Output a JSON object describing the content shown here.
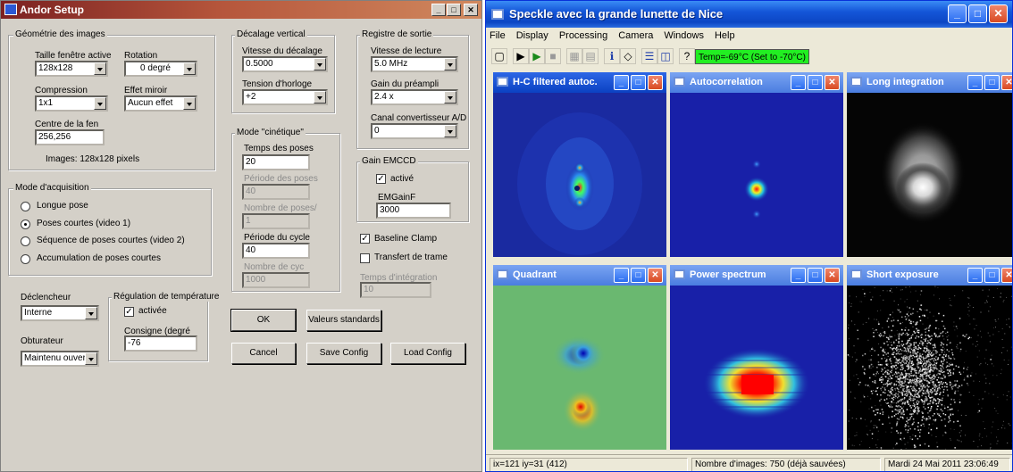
{
  "andor": {
    "title": "Andor Setup",
    "geometry": {
      "legend": "Géométrie des images",
      "taille_label": "Taille fenêtre active",
      "taille_value": "128x128",
      "rotation_label": "Rotation",
      "rotation_value": "0 degré",
      "compression_label": "Compression",
      "compression_value": "1x1",
      "miroir_label": "Effet miroir",
      "miroir_value": "Aucun effet",
      "centre_label": "Centre de la fen",
      "centre_value": "256,256",
      "images_text": "Images: 128x128 pixels"
    },
    "acq": {
      "legend": "Mode d'acquisition",
      "options": [
        "Longue pose",
        "Poses courtes (video 1)",
        "Séquence de poses courtes (video 2)",
        "Accumulation de poses courtes"
      ],
      "selected_index": 1
    },
    "declencheur_label": "Déclencheur",
    "declencheur_value": "Interne",
    "obturateur_label": "Obturateur",
    "obturateur_value": "Maintenu ouvert",
    "temp": {
      "legend": "Régulation de température",
      "activee_label": "activée",
      "consigne_label": "Consigne (degré",
      "consigne_value": "-76"
    },
    "vshift": {
      "legend": "Décalage vertical",
      "vitesse_label": "Vitesse du décalage",
      "vitesse_value": "0.5000",
      "tension_label": "Tension d'horloge",
      "tension_value": "+2"
    },
    "kinetic": {
      "legend": "Mode \"cinétique\"",
      "temps_label": "Temps des poses",
      "temps_value": "20",
      "periode_poses_label": "Période des poses",
      "periode_poses_value": "40",
      "nombre_poses_label": "Nombre de poses/",
      "nombre_poses_value": "1",
      "periode_cycle_label": "Période du cycle",
      "periode_cycle_value": "40",
      "nombre_cyc_label": "Nombre de cyc",
      "nombre_cyc_value": "1000"
    },
    "output": {
      "legend": "Registre de sortie",
      "lecture_label": "Vitesse de lecture",
      "lecture_value": "5.0 MHz",
      "gain_label": "Gain du préampli",
      "gain_value": "2.4 x",
      "canal_label": "Canal convertisseur A/D",
      "canal_value": "0"
    },
    "emccd": {
      "legend": "Gain EMCCD",
      "active_label": "activé",
      "emgain_label": "EMGainF",
      "emgain_value": "3000"
    },
    "baseline_label": "Baseline Clamp",
    "transfert_label": "Transfert de trame",
    "integration_label": "Temps d'intégration",
    "integration_value": "10",
    "buttons": {
      "ok": "OK",
      "standards": "Valeurs standards",
      "cancel": "Cancel",
      "save": "Save Config",
      "load": "Load Config"
    }
  },
  "speckle": {
    "title": "Speckle avec la grande lunette de Nice",
    "menu": [
      "File",
      "Display",
      "Processing",
      "Camera",
      "Windows",
      "Help"
    ],
    "temp_indicator": "Temp=-69°C (Set to -70°C)",
    "temp_color": "#22ee22",
    "panels": [
      {
        "title": "H-C filtered autoc.",
        "image": "hc-filtered"
      },
      {
        "title": "Autocorrelation",
        "image": "autocorrelation"
      },
      {
        "title": "Long integration",
        "image": "long-integration"
      },
      {
        "title": "Quadrant",
        "image": "quadrant"
      },
      {
        "title": "Power spectrum",
        "image": "power-spectrum"
      },
      {
        "title": "Short exposure",
        "image": "short-exposure"
      }
    ],
    "status": {
      "coords": "ix=121 iy=31 (412)",
      "images": "Nombre d'images: 750 (déjà sauvées)",
      "datetime": "Mardi 24 Mai 2011  23:06:49"
    }
  }
}
